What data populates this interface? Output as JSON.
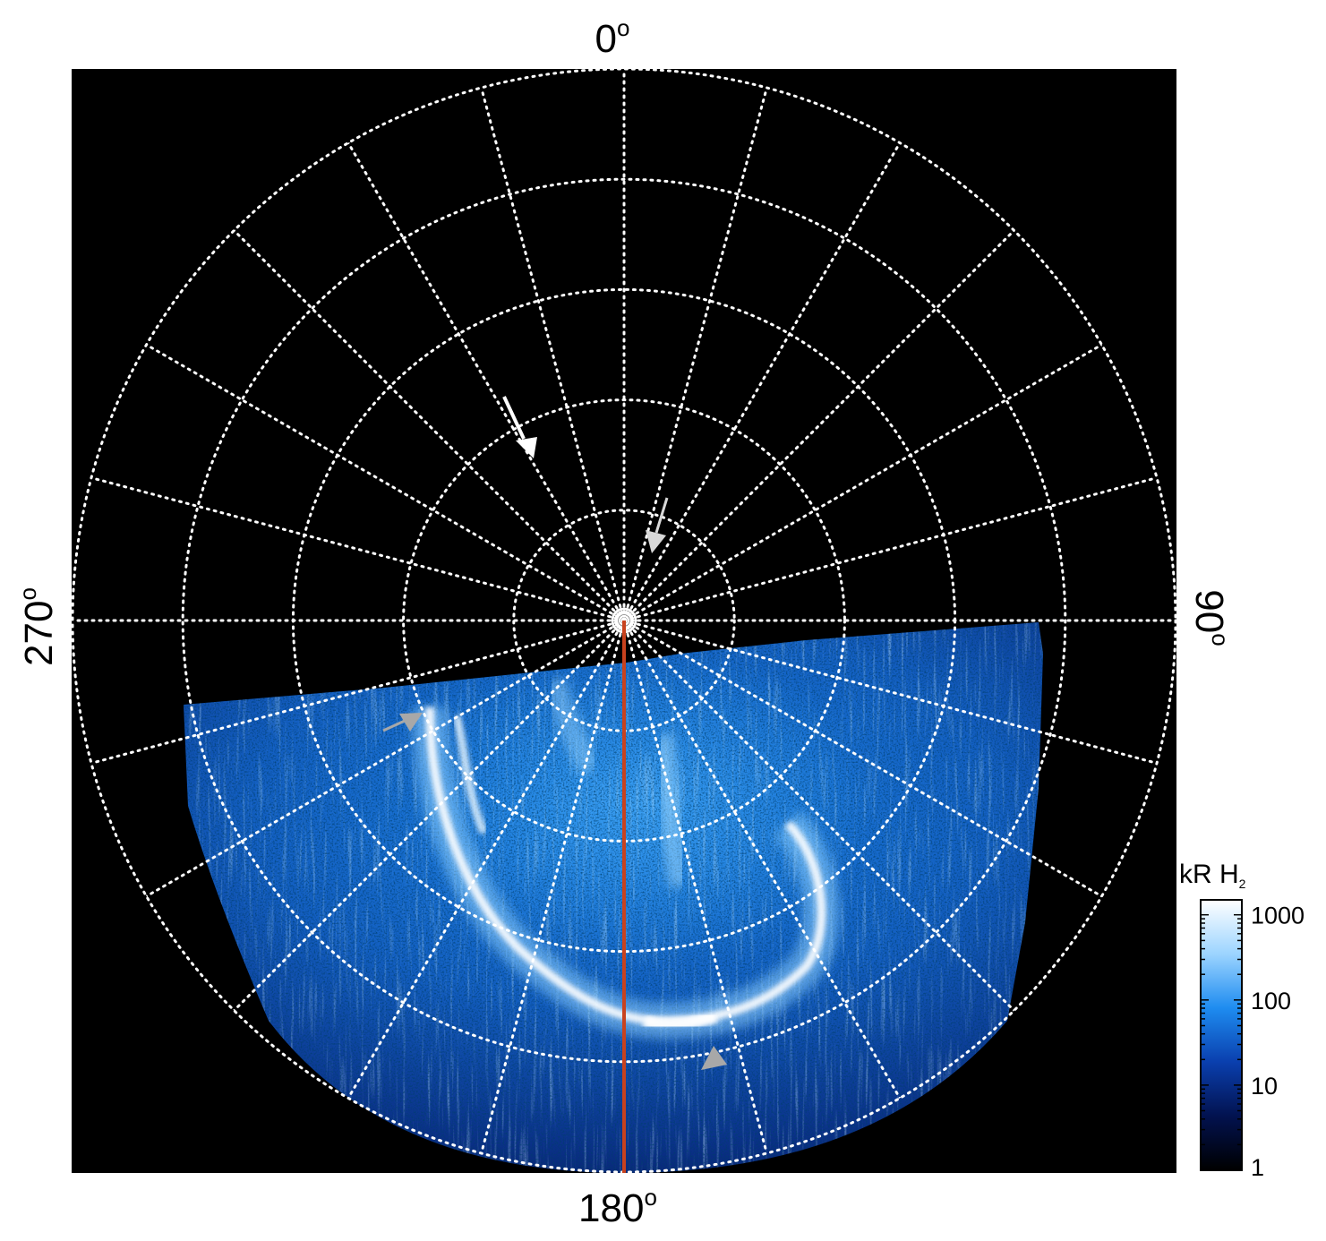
{
  "figure": {
    "labels": {
      "top": {
        "text": "0",
        "unit": "o"
      },
      "right": {
        "text": "90",
        "unit": "o"
      },
      "bottom": {
        "text": "180",
        "unit": "o"
      },
      "left": {
        "text": "270",
        "unit": "o"
      }
    },
    "colorbar": {
      "title": "kR H",
      "title_subscript": "2",
      "scale": "log",
      "ticks": [
        "1000",
        "100",
        "10",
        "1"
      ],
      "tick_values": [
        1000,
        100,
        10,
        1
      ],
      "range": [
        1,
        1500
      ],
      "colors": [
        "#000000",
        "#02124f",
        "#0a3fae",
        "#1e8cf0",
        "#9cd4ff",
        "#ffffff"
      ]
    },
    "grid": {
      "style": "dotted",
      "color": "#ffffff",
      "rings": 5,
      "spokes_every_deg": 15
    },
    "colors": {
      "background": "#000000",
      "meridian_line": "#c8421e",
      "arrow_white": "#ffffff",
      "arrow_grey": "#a8a8a8"
    }
  }
}
